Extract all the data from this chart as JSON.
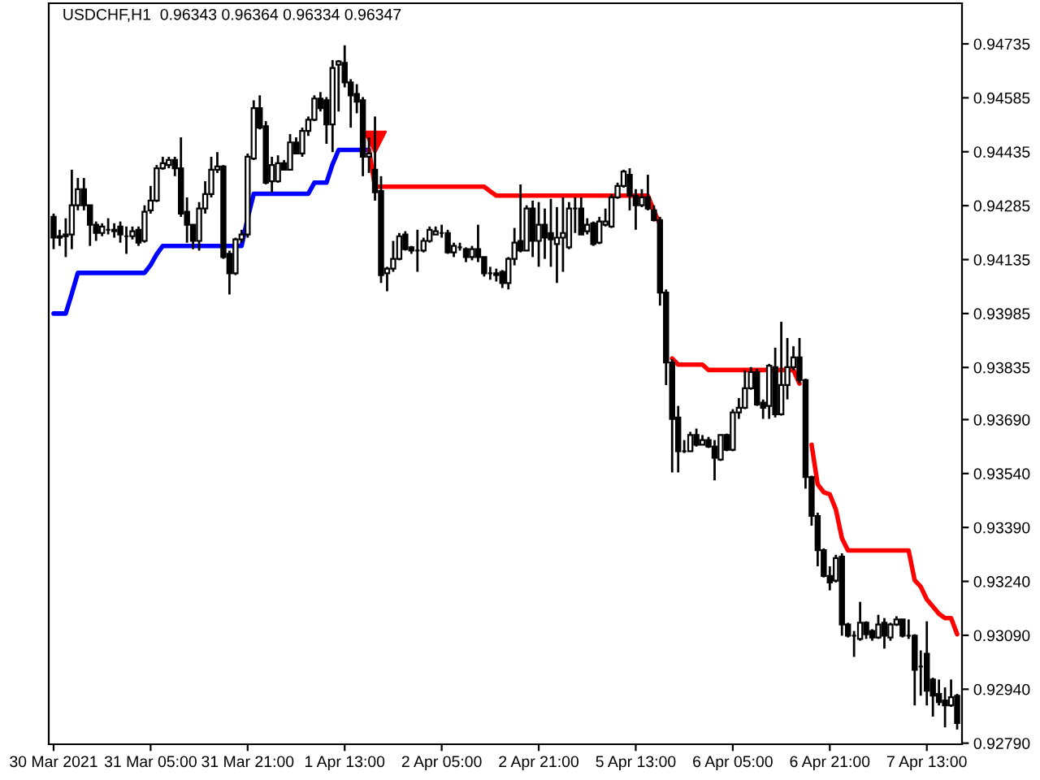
{
  "chart_data": {
    "type": "candlestick",
    "title": "USDCHF,H1  0.96343 0.96364 0.96334 0.96347",
    "ylim": [
      0.92787,
      0.94848
    ],
    "categories": [
      "30 Mar 2021",
      null,
      null,
      null,
      null,
      null,
      null,
      null,
      null,
      null,
      null,
      null,
      null,
      null,
      null,
      null,
      "31 Mar 05:00",
      null,
      null,
      null,
      null,
      null,
      null,
      null,
      null,
      null,
      null,
      null,
      null,
      null,
      null,
      null,
      "31 Mar 21:00",
      null,
      null,
      null,
      null,
      null,
      null,
      null,
      null,
      null,
      null,
      null,
      null,
      null,
      null,
      null,
      "1 Apr 13:00",
      null,
      null,
      null,
      null,
      null,
      null,
      null,
      null,
      null,
      null,
      null,
      null,
      null,
      null,
      null,
      "2 Apr 05:00",
      null,
      null,
      null,
      null,
      null,
      null,
      null,
      null,
      null,
      null,
      null,
      null,
      null,
      null,
      null,
      "2 Apr 21:00",
      null,
      null,
      null,
      null,
      null,
      null,
      null,
      null,
      null,
      null,
      null,
      null,
      null,
      null,
      null,
      "5 Apr 13:00",
      null,
      null,
      null,
      null,
      null,
      null,
      null,
      null,
      null,
      null,
      null,
      null,
      null,
      null,
      null,
      "6 Apr 05:00",
      null,
      null,
      null,
      null,
      null,
      null,
      null,
      null,
      null,
      null,
      null,
      null,
      null,
      null,
      null,
      "6 Apr 21:00",
      null,
      null,
      null,
      null,
      null,
      null,
      null,
      null,
      null,
      null,
      null,
      null,
      null,
      null,
      null,
      "7 Apr 13:00",
      null,
      null,
      null,
      null,
      null
    ],
    "yticks": [
      0.94735,
      0.94585,
      0.94435,
      0.94285,
      0.94135,
      0.93985,
      0.93835,
      {
        "value": 0.9369,
        "label": "0.93690"
      },
      {
        "value": 0.9354,
        "label": "0.93540"
      },
      {
        "value": 0.9339,
        "label": "0.93390"
      },
      {
        "value": 0.9324,
        "label": "0.93240"
      },
      {
        "value": 0.9309,
        "label": "0.93090"
      },
      {
        "value": 0.9294,
        "label": "0.92940"
      },
      {
        "value": 0.9279,
        "label": "0.92790"
      }
    ],
    "grid": false,
    "legend": false,
    "series": [
      {
        "type": "line",
        "color": "#0000ff",
        "values": [
          0.93985,
          0.93985,
          0.93985,
          0.9404,
          0.94098,
          0.94098,
          0.94098,
          0.94098,
          0.94098,
          0.94098,
          0.94098,
          0.94098,
          0.94098,
          0.94098,
          0.94098,
          0.94098,
          0.9412,
          0.9415,
          0.94173,
          0.94173,
          0.94173,
          0.94173,
          0.94173,
          0.94173,
          0.94173,
          0.94173,
          0.94173,
          0.94173,
          0.94173,
          0.94173,
          0.94173,
          0.94173,
          0.9425,
          0.94318,
          0.94318,
          0.94318,
          0.94318,
          0.94318,
          0.94318,
          0.94318,
          0.94318,
          0.94318,
          0.94318,
          0.94349,
          0.94349,
          0.94349,
          0.944,
          0.9444,
          0.9444,
          0.9444,
          0.9444,
          0.9444,
          0.9444,
          null,
          null,
          null,
          null,
          null,
          null,
          null,
          null,
          null,
          null,
          null,
          null,
          null,
          null,
          null,
          null,
          null,
          null,
          null,
          null,
          null,
          null,
          null,
          null,
          null,
          null,
          null,
          null,
          null,
          null,
          null,
          null,
          null,
          null,
          null,
          null,
          null,
          null,
          null,
          null,
          null,
          null,
          null,
          null,
          null,
          null,
          null,
          null,
          null,
          null,
          null,
          null,
          null,
          null,
          null,
          null,
          null,
          null,
          null,
          null,
          null,
          null,
          null,
          null,
          null,
          null,
          null,
          null,
          null,
          null,
          null,
          null,
          null,
          null,
          null,
          null,
          null,
          null,
          null,
          null,
          null,
          null,
          null,
          null,
          null,
          null,
          null,
          null,
          null,
          null,
          null,
          null,
          null,
          null,
          null,
          null,
          null
        ]
      },
      {
        "type": "line",
        "color": "#ff0000",
        "values": [
          null,
          null,
          null,
          null,
          null,
          null,
          null,
          null,
          null,
          null,
          null,
          null,
          null,
          null,
          null,
          null,
          null,
          null,
          null,
          null,
          null,
          null,
          null,
          null,
          null,
          null,
          null,
          null,
          null,
          null,
          null,
          null,
          null,
          null,
          null,
          null,
          null,
          null,
          null,
          null,
          null,
          null,
          null,
          null,
          null,
          null,
          null,
          null,
          null,
          null,
          null,
          null,
          0.9444,
          0.94338,
          0.94338,
          0.94338,
          0.94338,
          0.94338,
          0.94338,
          0.94338,
          0.94338,
          0.94338,
          0.94338,
          0.94338,
          0.94338,
          0.94338,
          0.94338,
          0.94338,
          0.94338,
          0.94338,
          0.94338,
          0.94338,
          0.94325,
          0.94313,
          0.94313,
          0.94313,
          0.94313,
          0.94313,
          0.94313,
          0.94313,
          0.94313,
          0.94313,
          0.94313,
          0.94313,
          0.94313,
          0.94313,
          0.94313,
          0.94313,
          0.94313,
          0.94313,
          0.94313,
          0.94313,
          0.94313,
          0.94313,
          0.94313,
          0.94313,
          0.94313,
          0.94313,
          0.94313,
          0.9427,
          0.94233,
          null,
          0.9386,
          0.93843,
          0.93843,
          0.93843,
          0.93843,
          0.93843,
          0.93828,
          0.93828,
          0.93828,
          0.93828,
          0.93828,
          0.93828,
          0.93828,
          0.93828,
          0.93828,
          0.93828,
          0.93828,
          0.93828,
          0.93828,
          0.93828,
          0.93828,
          0.9379,
          null,
          0.9362,
          0.9351,
          0.93488,
          0.93482,
          0.9344,
          0.9336,
          0.93326,
          0.93326,
          0.93326,
          0.93326,
          0.93326,
          0.93326,
          0.93326,
          0.93326,
          0.93326,
          0.93326,
          0.93326,
          0.93243,
          0.93225,
          0.9319,
          0.9317,
          0.9315,
          0.93138,
          0.93138,
          0.93093
        ]
      },
      {
        "type": "scatter",
        "color": "#ff0000",
        "marker": "triangle",
        "values": [
          null,
          null,
          null,
          null,
          null,
          null,
          null,
          null,
          null,
          null,
          null,
          null,
          null,
          null,
          null,
          null,
          null,
          null,
          null,
          null,
          null,
          null,
          null,
          null,
          null,
          null,
          null,
          null,
          null,
          null,
          null,
          null,
          null,
          null,
          null,
          null,
          null,
          null,
          null,
          null,
          null,
          null,
          null,
          null,
          null,
          null,
          null,
          null,
          null,
          null,
          null,
          null,
          null,
          0.94461,
          null,
          null,
          null,
          null,
          null,
          null,
          null,
          null,
          null,
          null,
          null,
          null,
          null,
          null,
          null,
          null,
          null,
          null,
          null,
          null,
          null,
          null,
          null,
          null,
          null,
          null,
          null,
          null,
          null,
          null,
          null,
          null,
          null,
          null,
          null,
          null,
          null,
          null,
          null,
          null,
          null,
          null,
          null,
          null,
          null,
          null,
          null,
          null,
          null,
          null,
          null,
          null,
          null,
          null,
          null,
          null,
          null,
          null,
          null,
          null,
          null,
          null,
          null,
          null,
          null,
          null,
          null,
          null,
          null,
          null,
          null,
          null,
          null,
          null,
          null,
          null,
          null,
          null,
          null,
          null,
          null,
          null,
          null,
          null,
          null,
          null,
          null,
          null,
          null,
          null,
          null,
          null,
          null,
          null,
          null,
          null
        ]
      },
      {
        "type": "candlestick",
        "color": "#000000",
        "ohlc": [
          [
            0.94254,
            0.94263,
            0.94164,
            0.94196
          ],
          [
            0.942,
            0.94218,
            0.94173,
            0.94196
          ],
          [
            0.94205,
            0.9425,
            0.94142,
            0.942
          ],
          [
            0.94205,
            0.94385,
            0.94164,
            0.94286
          ],
          [
            0.94286,
            0.94362,
            0.94272,
            0.94331
          ],
          [
            0.94331,
            0.94362,
            0.94272,
            0.94286
          ],
          [
            0.94286,
            0.94286,
            0.94173,
            0.94232
          ],
          [
            0.94232,
            0.94241,
            0.94187,
            0.94209
          ],
          [
            0.94209,
            0.94236,
            0.942,
            0.94227
          ],
          [
            0.94218,
            0.9425,
            0.94205,
            0.94218
          ],
          [
            0.94218,
            0.94236,
            0.94196,
            0.94214
          ],
          [
            0.94227,
            0.94241,
            0.94182,
            0.94205
          ],
          [
            0.942,
            0.94227,
            0.94151,
            0.942
          ],
          [
            0.942,
            0.94227,
            0.94191,
            0.94214
          ],
          [
            0.94218,
            0.94227,
            0.94173,
            0.94182
          ],
          [
            0.94187,
            0.94286,
            0.94182,
            0.94268
          ],
          [
            0.94272,
            0.9434,
            0.94263,
            0.94299
          ],
          [
            0.94299,
            0.94398,
            0.94295,
            0.94389
          ],
          [
            0.94389,
            0.94421,
            0.94385,
            0.94403
          ],
          [
            0.94398,
            0.94421,
            0.94389,
            0.94412
          ],
          [
            0.94412,
            0.94421,
            0.94367,
            0.94389
          ],
          [
            0.94389,
            0.94475,
            0.94254,
            0.94263
          ],
          [
            0.94268,
            0.94308,
            0.94182,
            0.94232
          ],
          [
            0.94232,
            0.94232,
            0.94164,
            0.94187
          ],
          [
            0.94187,
            0.94295,
            0.9416,
            0.94277
          ],
          [
            0.94277,
            0.94353,
            0.94263,
            0.94317
          ],
          [
            0.94317,
            0.94421,
            0.94308,
            0.94385
          ],
          [
            0.94385,
            0.94434,
            0.94376,
            0.94394
          ],
          [
            0.94394,
            0.94398,
            0.94137,
            0.94142
          ],
          [
            0.94151,
            0.9416,
            0.94038,
            0.94097
          ],
          [
            0.94097,
            0.94196,
            0.94092,
            0.94191
          ],
          [
            0.94191,
            0.94218,
            0.94182,
            0.94205
          ],
          [
            0.94205,
            0.9443,
            0.94196,
            0.94421
          ],
          [
            0.94416,
            0.94578,
            0.94412,
            0.94556
          ],
          [
            0.94556,
            0.94592,
            0.94497,
            0.94502
          ],
          [
            0.94506,
            0.9452,
            0.94344,
            0.94349
          ],
          [
            0.94353,
            0.94421,
            0.94322,
            0.94398
          ],
          [
            0.94353,
            0.94425,
            0.94349,
            0.94403
          ],
          [
            0.94403,
            0.94412,
            0.94385,
            0.94385
          ],
          [
            0.94385,
            0.94484,
            0.94385,
            0.94461
          ],
          [
            0.94461,
            0.94475,
            0.9443,
            0.9443
          ],
          [
            0.9443,
            0.94502,
            0.94421,
            0.94493
          ],
          [
            0.94493,
            0.94533,
            0.94479,
            0.94524
          ],
          [
            0.94524,
            0.94592,
            0.9452,
            0.94583
          ],
          [
            0.94583,
            0.94601,
            0.94547,
            0.94556
          ],
          [
            0.94578,
            0.94587,
            0.94457,
            0.94511
          ],
          [
            0.94511,
            0.9469,
            0.94434,
            0.94668
          ],
          [
            0.94677,
            0.9469,
            0.94547,
            0.94686
          ],
          [
            0.94682,
            0.94731,
            0.94614,
            0.94628
          ],
          [
            0.94628,
            0.94637,
            0.94502,
            0.94592
          ],
          [
            0.94596,
            0.94623,
            0.94542,
            0.94574
          ],
          [
            0.94578,
            0.94587,
            0.94367,
            0.94421
          ],
          [
            0.94421,
            0.94475,
            0.94376,
            0.9443
          ],
          [
            0.94385,
            0.94533,
            0.94299,
            0.94322
          ],
          [
            0.94326,
            0.94367,
            0.9407,
            0.94092
          ],
          [
            0.94097,
            0.94115,
            0.94047,
            0.9411
          ],
          [
            0.9411,
            0.94187,
            0.94101,
            0.94137
          ],
          [
            0.94137,
            0.94209,
            0.94133,
            0.942
          ],
          [
            0.94205,
            0.94214,
            0.9416,
            0.94164
          ],
          [
            0.94169,
            0.94173,
            0.94151,
            0.9416
          ],
          [
            0.9416,
            0.94218,
            0.94101,
            0.9416
          ],
          [
            0.9416,
            0.94196,
            0.94155,
            0.94187
          ],
          [
            0.94187,
            0.94227,
            0.94182,
            0.94218
          ],
          [
            0.94205,
            0.94227,
            0.94205,
            0.94214
          ],
          [
            0.94209,
            0.94232,
            0.94196,
            0.94209
          ],
          [
            0.94209,
            0.94218,
            0.94151,
            0.94155
          ],
          [
            0.94155,
            0.94182,
            0.94142,
            0.94173
          ],
          [
            0.94169,
            0.94182,
            0.9416,
            0.94169
          ],
          [
            0.94164,
            0.94169,
            0.94128,
            0.94142
          ],
          [
            0.94142,
            0.94173,
            0.94133,
            0.94164
          ],
          [
            0.94164,
            0.94232,
            0.94128,
            0.94142
          ],
          [
            0.94142,
            0.94142,
            0.94088,
            0.94097
          ],
          [
            0.94097,
            0.94115,
            0.94079,
            0.94097
          ],
          [
            0.94097,
            0.9411,
            0.94074,
            0.94092
          ],
          [
            0.94101,
            0.94106,
            0.94056,
            0.9407
          ],
          [
            0.9407,
            0.94142,
            0.94052,
            0.94137
          ],
          [
            0.94137,
            0.94223,
            0.94119,
            0.94182
          ],
          [
            0.94187,
            0.94344,
            0.94155,
            0.9416
          ],
          [
            0.9416,
            0.94286,
            0.9416,
            0.94277
          ],
          [
            0.94277,
            0.94299,
            0.94142,
            0.94187
          ],
          [
            0.94187,
            0.94295,
            0.94115,
            0.94232
          ],
          [
            0.94232,
            0.94277,
            0.94137,
            0.94196
          ],
          [
            0.94209,
            0.94304,
            0.94115,
            0.94191
          ],
          [
            0.94178,
            0.94281,
            0.9407,
            0.94196
          ],
          [
            0.94196,
            0.94308,
            0.94101,
            0.94209
          ],
          [
            0.94169,
            0.94295,
            0.94164,
            0.94277
          ],
          [
            0.94277,
            0.94308,
            0.94209,
            0.94277
          ],
          [
            0.94277,
            0.94308,
            0.94205,
            0.94205
          ],
          [
            0.94214,
            0.9425,
            0.94205,
            0.94232
          ],
          [
            0.94236,
            0.94241,
            0.94173,
            0.94178
          ],
          [
            0.94182,
            0.94254,
            0.94178,
            0.94241
          ],
          [
            0.94232,
            0.94277,
            0.94227,
            0.94241
          ],
          [
            0.94227,
            0.94317,
            0.94223,
            0.94308
          ],
          [
            0.94308,
            0.94349,
            0.94304,
            0.9434
          ],
          [
            0.9434,
            0.94385,
            0.94335,
            0.9438
          ],
          [
            0.94371,
            0.94389,
            0.94272,
            0.94313
          ],
          [
            0.94313,
            0.94331,
            0.94218,
            0.94286
          ],
          [
            0.94286,
            0.94331,
            0.94281,
            0.94308
          ],
          [
            0.94308,
            0.94371,
            0.94272,
            0.94277
          ],
          [
            0.94272,
            0.94286,
            0.94241,
            0.94245
          ],
          [
            0.94245,
            0.94254,
            0.94007,
            0.94043
          ],
          [
            0.94043,
            0.94052,
            0.93786,
            0.93849
          ],
          [
            0.93849,
            0.93858,
            0.93543,
            0.93692
          ],
          [
            0.93696,
            0.93728,
            0.93543,
            0.93602
          ],
          [
            0.93602,
            0.93633,
            0.93597,
            0.93602
          ],
          [
            0.93602,
            0.93656,
            0.93602,
            0.93647
          ],
          [
            0.93647,
            0.93665,
            0.93615,
            0.9362
          ],
          [
            0.9362,
            0.93647,
            0.9362,
            0.93633
          ],
          [
            0.93633,
            0.93642,
            0.93611,
            0.93615
          ],
          [
            0.93615,
            0.93633,
            0.93521,
            0.93584
          ],
          [
            0.93579,
            0.93647,
            0.93575,
            0.93647
          ],
          [
            0.93647,
            0.93651,
            0.93602,
            0.93606
          ],
          [
            0.93606,
            0.93719,
            0.93602,
            0.9371
          ],
          [
            0.9371,
            0.9375,
            0.93692,
            0.93723
          ],
          [
            0.93723,
            0.93827,
            0.93719,
            0.93777
          ],
          [
            0.93777,
            0.93836,
            0.93773,
            0.93822
          ],
          [
            0.93822,
            0.93831,
            0.93728,
            0.93732
          ],
          [
            0.93737,
            0.93746,
            0.93692,
            0.93723
          ],
          [
            0.93728,
            0.93845,
            0.93692,
            0.9384
          ],
          [
            0.93836,
            0.9389,
            0.93696,
            0.93705
          ],
          [
            0.93705,
            0.93962,
            0.93701,
            0.93786
          ],
          [
            0.93786,
            0.93917,
            0.93746,
            0.93836
          ],
          [
            0.93836,
            0.93894,
            0.93827,
            0.93863
          ],
          [
            0.93863,
            0.93917,
            0.93791,
            0.938
          ],
          [
            0.938,
            0.93804,
            0.93498,
            0.9353
          ],
          [
            0.9353,
            0.93534,
            0.93395,
            0.93422
          ],
          [
            0.93422,
            0.93431,
            0.93282,
            0.93327
          ],
          [
            0.93327,
            0.93332,
            0.93251,
            0.93255
          ],
          [
            0.93255,
            0.93282,
            0.93215,
            0.93237
          ],
          [
            0.93242,
            0.93314,
            0.93237,
            0.93305
          ],
          [
            0.93309,
            0.93318,
            0.93089,
            0.9312
          ],
          [
            0.9312,
            0.93125,
            0.93084,
            0.93089
          ],
          [
            0.93089,
            0.93102,
            0.9303,
            0.93089
          ],
          [
            0.9308,
            0.93183,
            0.93075,
            0.93125
          ],
          [
            0.93125,
            0.93129,
            0.9308,
            0.93093
          ],
          [
            0.93102,
            0.93107,
            0.93075,
            0.93084
          ],
          [
            0.93084,
            0.93147,
            0.9308,
            0.9312
          ],
          [
            0.93125,
            0.93138,
            0.93053,
            0.93089
          ],
          [
            0.93084,
            0.93125,
            0.93075,
            0.9312
          ],
          [
            0.9312,
            0.93143,
            0.93116,
            0.93134
          ],
          [
            0.93134,
            0.93134,
            0.93084,
            0.93089
          ],
          [
            0.93089,
            0.93134,
            0.9308,
            0.93089
          ],
          [
            0.93089,
            0.93093,
            0.92895,
            0.92994
          ],
          [
            0.93003,
            0.93048,
            0.92922,
            0.93003
          ],
          [
            0.93039,
            0.93129,
            0.92895,
            0.92936
          ],
          [
            0.92967,
            0.92972,
            0.92864,
            0.92922
          ],
          [
            0.92927,
            0.92967,
            0.92895,
            0.92904
          ],
          [
            0.92909,
            0.92945,
            0.92834,
            0.92895
          ],
          [
            0.92895,
            0.92967,
            0.92891,
            0.92918
          ],
          [
            0.92922,
            0.92927,
            0.92828,
            0.92846
          ]
        ]
      }
    ]
  }
}
